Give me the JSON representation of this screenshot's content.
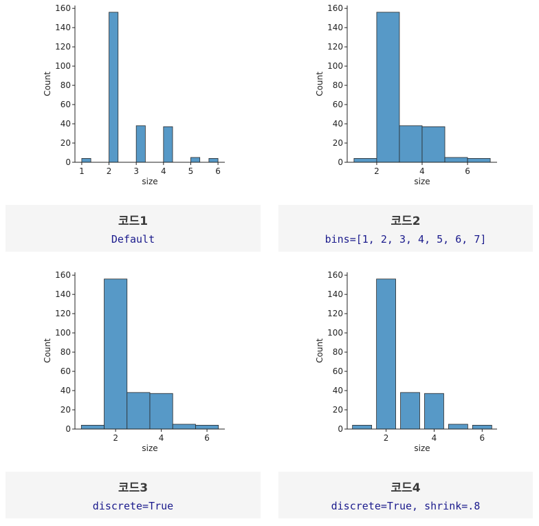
{
  "chart_data": [
    {
      "type": "bar",
      "title": "",
      "xlabel": "size",
      "ylabel": "Count",
      "xlim": [
        0.75,
        6.25
      ],
      "ylim": [
        0,
        163
      ],
      "xticks": [
        1,
        2,
        3,
        4,
        5,
        6
      ],
      "yticks": [
        0,
        20,
        40,
        60,
        80,
        100,
        120,
        140,
        160
      ],
      "bins": [
        {
          "x0": 1.0,
          "x1": 1.333,
          "value": 4
        },
        {
          "x0": 2.0,
          "x1": 2.333,
          "value": 156
        },
        {
          "x0": 2.667,
          "x1": 3.0,
          "value": 0
        },
        {
          "x0": 3.0,
          "x1": 3.333,
          "value": 38
        },
        {
          "x0": 4.0,
          "x1": 4.333,
          "value": 37
        },
        {
          "x0": 5.0,
          "x1": 5.333,
          "value": 5
        },
        {
          "x0": 5.667,
          "x1": 6.0,
          "value": 4
        }
      ]
    },
    {
      "type": "bar",
      "title": "",
      "xlabel": "size",
      "ylabel": "Count",
      "xlim": [
        0.7,
        7.3
      ],
      "ylim": [
        0,
        163
      ],
      "xticks": [
        2,
        4,
        6
      ],
      "yticks": [
        0,
        20,
        40,
        60,
        80,
        100,
        120,
        140,
        160
      ],
      "bins": [
        {
          "x0": 1,
          "x1": 2,
          "value": 4
        },
        {
          "x0": 2,
          "x1": 3,
          "value": 156
        },
        {
          "x0": 3,
          "x1": 4,
          "value": 38
        },
        {
          "x0": 4,
          "x1": 5,
          "value": 37
        },
        {
          "x0": 5,
          "x1": 6,
          "value": 5
        },
        {
          "x0": 6,
          "x1": 7,
          "value": 4
        }
      ]
    },
    {
      "type": "bar",
      "title": "",
      "xlabel": "size",
      "ylabel": "Count",
      "xlim": [
        0.22,
        6.78
      ],
      "ylim": [
        0,
        163
      ],
      "xticks": [
        2,
        4,
        6
      ],
      "yticks": [
        0,
        20,
        40,
        60,
        80,
        100,
        120,
        140,
        160
      ],
      "bins": [
        {
          "x0": 0.5,
          "x1": 1.5,
          "value": 4
        },
        {
          "x0": 1.5,
          "x1": 2.5,
          "value": 156
        },
        {
          "x0": 2.5,
          "x1": 3.5,
          "value": 38
        },
        {
          "x0": 3.5,
          "x1": 4.5,
          "value": 37
        },
        {
          "x0": 4.5,
          "x1": 5.5,
          "value": 5
        },
        {
          "x0": 5.5,
          "x1": 6.5,
          "value": 4
        }
      ]
    },
    {
      "type": "bar",
      "title": "",
      "xlabel": "size",
      "ylabel": "Count",
      "xlim": [
        0.38,
        6.62
      ],
      "ylim": [
        0,
        163
      ],
      "xticks": [
        2,
        4,
        6
      ],
      "yticks": [
        0,
        20,
        40,
        60,
        80,
        100,
        120,
        140,
        160
      ],
      "bins": [
        {
          "x0": 0.6,
          "x1": 1.4,
          "value": 4
        },
        {
          "x0": 1.6,
          "x1": 2.4,
          "value": 156
        },
        {
          "x0": 2.6,
          "x1": 3.4,
          "value": 38
        },
        {
          "x0": 3.6,
          "x1": 4.4,
          "value": 37
        },
        {
          "x0": 4.6,
          "x1": 5.4,
          "value": 5
        },
        {
          "x0": 5.6,
          "x1": 6.4,
          "value": 4
        }
      ]
    }
  ],
  "captions": [
    {
      "title": "코드1",
      "code": "Default"
    },
    {
      "title": "코드2",
      "code": "bins=[1, 2, 3, 4, 5, 6, 7]"
    },
    {
      "title": "코드3",
      "code": "discrete=True"
    },
    {
      "title": "코드4",
      "code": "discrete=True, shrink=.8"
    }
  ],
  "colors": {
    "bar_fill": "#5799c7",
    "bar_edge": "#2a2a2a",
    "axis": "#222222",
    "caption_bg": "#f5f5f5",
    "code_text": "#1a1a8c"
  }
}
